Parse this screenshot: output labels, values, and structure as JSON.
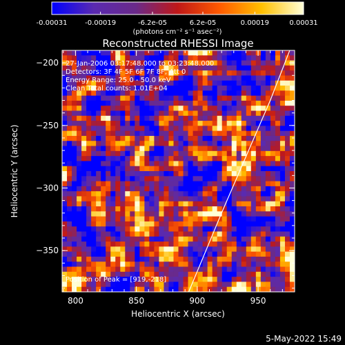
{
  "chart_data": {
    "type": "heatmap",
    "title": "Reconstructed RHESSI Image",
    "xlabel": "Heliocentric X (arcsec)",
    "ylabel": "Heliocentric Y (arcsec)",
    "xlim": [
      789,
      980
    ],
    "ylim": [
      -383,
      -190
    ],
    "x_ticks": [
      "800",
      "850",
      "900",
      "950"
    ],
    "y_ticks": [
      "-200",
      "-250",
      "-300",
      "-350"
    ],
    "colorbar": {
      "range": [
        -0.00031,
        0.00031
      ],
      "tick_labels": [
        "-0.00031",
        "-0.00019",
        "-6.2e-05",
        "6.2e-05",
        "0.00019",
        "0.00031"
      ],
      "units_label": "(photons cm⁻² s⁻¹ asec⁻²)",
      "colors": [
        "#0000ff",
        "#5a2ab0",
        "#6a2a8a",
        "#c01818",
        "#ff5a00",
        "#ffc000",
        "#ffffd8"
      ]
    },
    "annotations": [
      "27-Jan-2006 03:17:48.000 to 03:23:48.000",
      "Detectors: 3F 4F 5F 6F 7F 8F, Att 0",
      "Energy Range: 25.0 - 50.0 keV",
      "Clean    Total counts: 1.01E+04"
    ],
    "peak_label": "Position of Peak = [919,-218]",
    "limb_curve": [
      [
        976,
        -190
      ],
      [
        960,
        -230
      ],
      [
        940,
        -275
      ],
      [
        920,
        -320
      ],
      [
        905,
        -355
      ],
      [
        893,
        -383
      ]
    ]
  },
  "footer_timestamp": "5-May-2022 15:49"
}
